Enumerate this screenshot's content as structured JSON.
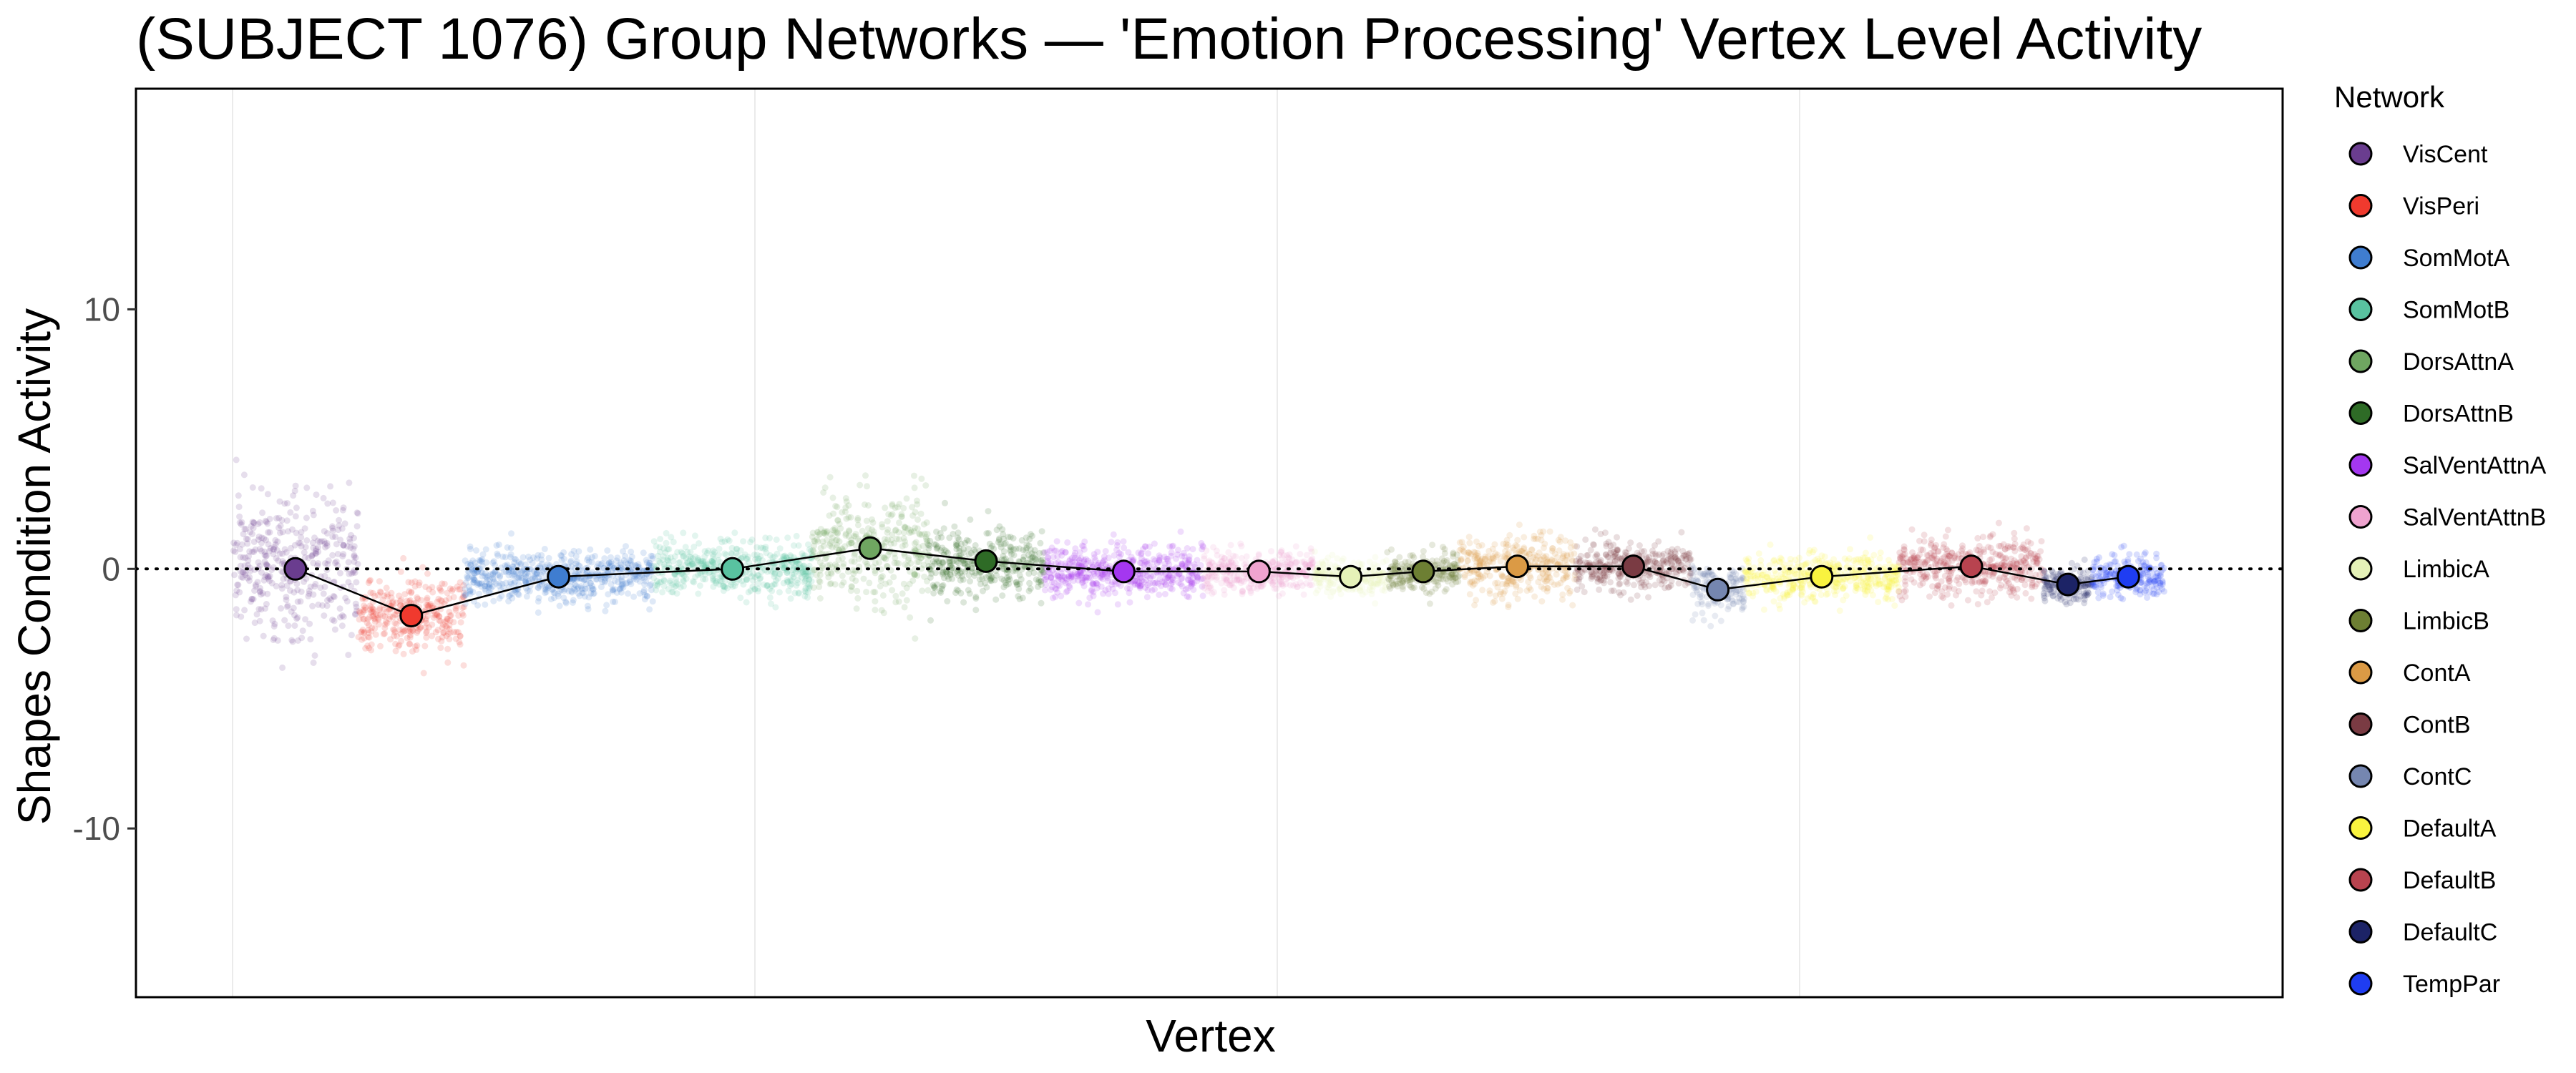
{
  "chart_data": {
    "type": "scatter",
    "title": "(SUBJECT 1076) Group Networks — 'Emotion Processing' Vertex Level Activity",
    "xlabel": "Vertex",
    "ylabel": "Shapes Condition Activity",
    "ylim": [
      -16.5,
      18.5
    ],
    "yticks": [
      10,
      0,
      -10
    ],
    "reference_line_y": 0,
    "grid": "x-major only",
    "legend_title": "Network",
    "legend_position": "right",
    "series": [
      {
        "name": "VisCent",
        "color": "#6A3D8F",
        "mean": 0.0,
        "spread": 2.6,
        "width": 1.3
      },
      {
        "name": "VisPeri",
        "color": "#F03A2E",
        "mean": -1.8,
        "spread": 1.3,
        "width": 1.1
      },
      {
        "name": "SomMotA",
        "color": "#3F7DD0",
        "mean": -0.3,
        "spread": 0.9,
        "width": 1.95
      },
      {
        "name": "SomMotB",
        "color": "#59C2A0",
        "mean": 0.0,
        "spread": 0.9,
        "width": 1.65
      },
      {
        "name": "DorsAttnA",
        "color": "#6FA661",
        "mean": 0.8,
        "spread": 1.9,
        "width": 1.2
      },
      {
        "name": "DorsAttnB",
        "color": "#2E6B26",
        "mean": 0.3,
        "spread": 1.2,
        "width": 1.2
      },
      {
        "name": "SalVentAttnA",
        "color": "#A437F0",
        "mean": -0.1,
        "spread": 0.9,
        "width": 1.65
      },
      {
        "name": "SalVentAttnB",
        "color": "#EFA3CF",
        "mean": -0.1,
        "spread": 0.7,
        "width": 1.15
      },
      {
        "name": "LimbicA",
        "color": "#E5F2B8",
        "mean": -0.3,
        "spread": 0.6,
        "width": 0.75
      },
      {
        "name": "LimbicB",
        "color": "#6D7F33",
        "mean": -0.1,
        "spread": 0.7,
        "width": 0.75
      },
      {
        "name": "ContA",
        "color": "#DB9A45",
        "mean": 0.1,
        "spread": 1.1,
        "width": 1.2
      },
      {
        "name": "ContB",
        "color": "#7A3B43",
        "mean": 0.1,
        "spread": 0.8,
        "width": 1.2
      },
      {
        "name": "ContC",
        "color": "#7586B0",
        "mean": -0.8,
        "spread": 0.9,
        "width": 0.55
      },
      {
        "name": "DefaultA",
        "color": "#F9F33F",
        "mean": -0.3,
        "spread": 0.8,
        "width": 1.6
      },
      {
        "name": "DefaultB",
        "color": "#B8434F",
        "mean": 0.1,
        "spread": 1.0,
        "width": 1.5
      },
      {
        "name": "DefaultC",
        "color": "#1C2366",
        "mean": -0.6,
        "spread": 0.6,
        "width": 0.5
      },
      {
        "name": "TempPar",
        "color": "#1F3DF2",
        "mean": -0.3,
        "spread": 0.8,
        "width": 0.75
      }
    ]
  }
}
